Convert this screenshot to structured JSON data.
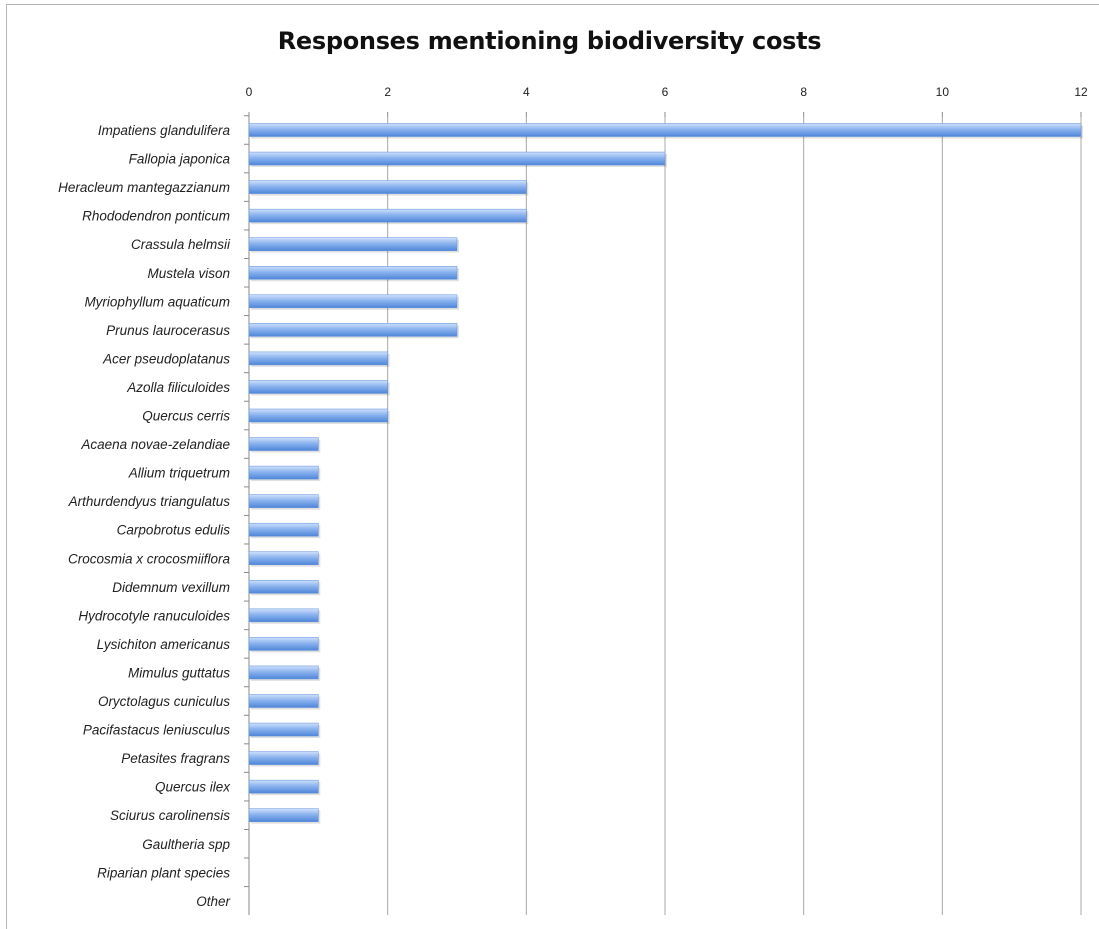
{
  "chart_data": {
    "type": "bar",
    "orientation": "horizontal",
    "title": "Responses mentioning biodiversity costs",
    "xlabel": "",
    "ylabel": "",
    "xlim": [
      0,
      12
    ],
    "xticks": [
      0,
      2,
      4,
      6,
      8,
      10,
      12
    ],
    "grid": "vertical",
    "legend": "none",
    "bar_color": "#6a9ee6",
    "categories": [
      "Impatiens glandulifera",
      "Fallopia japonica",
      "Heracleum mantegazzianum",
      "Rhododendron ponticum",
      "Crassula helmsii",
      "Mustela vison",
      "Myriophyllum aquaticum",
      "Prunus laurocerasus",
      "Acer pseudoplatanus",
      "Azolla filiculoides",
      "Quercus cerris",
      "Acaena novae-zelandiae",
      "Allium triquetrum",
      "Arthurdendyus triangulatus",
      "Carpobrotus edulis",
      "Crocosmia x crocosmiiflora",
      "Didemnum vexillum",
      "Hydrocotyle ranuculoides",
      "Lysichiton americanus",
      "Mimulus guttatus",
      "Oryctolagus cuniculus",
      "Pacifastacus leniusculus",
      "Petasites fragrans",
      "Quercus ilex",
      "Sciurus carolinensis",
      "Gaultheria spp",
      "Riparian plant species",
      "Other"
    ],
    "values": [
      12,
      6,
      4,
      4,
      3,
      3,
      3,
      3,
      2,
      2,
      2,
      1,
      1,
      1,
      1,
      1,
      1,
      1,
      1,
      1,
      1,
      1,
      1,
      1,
      1,
      0,
      0,
      0
    ]
  }
}
